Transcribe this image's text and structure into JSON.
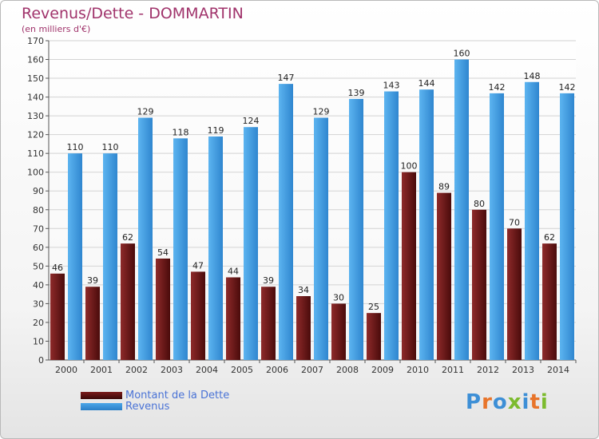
{
  "title": "Revenus/Dette - DOMMARTIN",
  "subtitle": "(en milliers d'€)",
  "colors": {
    "title": "#a0336b",
    "dette": "#7a1a1a",
    "revenus": "#4ba6e8",
    "legend_text": "#4a73d6"
  },
  "logo": {
    "text": "Proxiti",
    "letter_colors": [
      "#3d8fd6",
      "#e8742a",
      "#3d8fd6",
      "#7cbb2e",
      "#3d8fd6",
      "#e8742a",
      "#7cbb2e"
    ]
  },
  "chart_data": {
    "type": "bar",
    "title": "Revenus/Dette - DOMMARTIN",
    "subtitle": "(en milliers d'€)",
    "categories": [
      "2000",
      "2001",
      "2002",
      "2003",
      "2004",
      "2005",
      "2006",
      "2007",
      "2008",
      "2009",
      "2010",
      "2011",
      "2012",
      "2013",
      "2014"
    ],
    "series": [
      {
        "name": "Montant de la Dette",
        "values": [
          46,
          39,
          62,
          54,
          47,
          44,
          39,
          34,
          30,
          25,
          100,
          89,
          80,
          70,
          62
        ]
      },
      {
        "name": "Revenus",
        "values": [
          110,
          110,
          129,
          118,
          119,
          124,
          147,
          129,
          139,
          143,
          144,
          160,
          142,
          148,
          142
        ]
      }
    ],
    "ylim": [
      0,
      170
    ],
    "yticks": [
      0,
      10,
      20,
      30,
      40,
      50,
      60,
      70,
      80,
      90,
      100,
      110,
      120,
      130,
      140,
      150,
      160,
      170
    ],
    "grid": true,
    "legend": "bottom-left"
  }
}
